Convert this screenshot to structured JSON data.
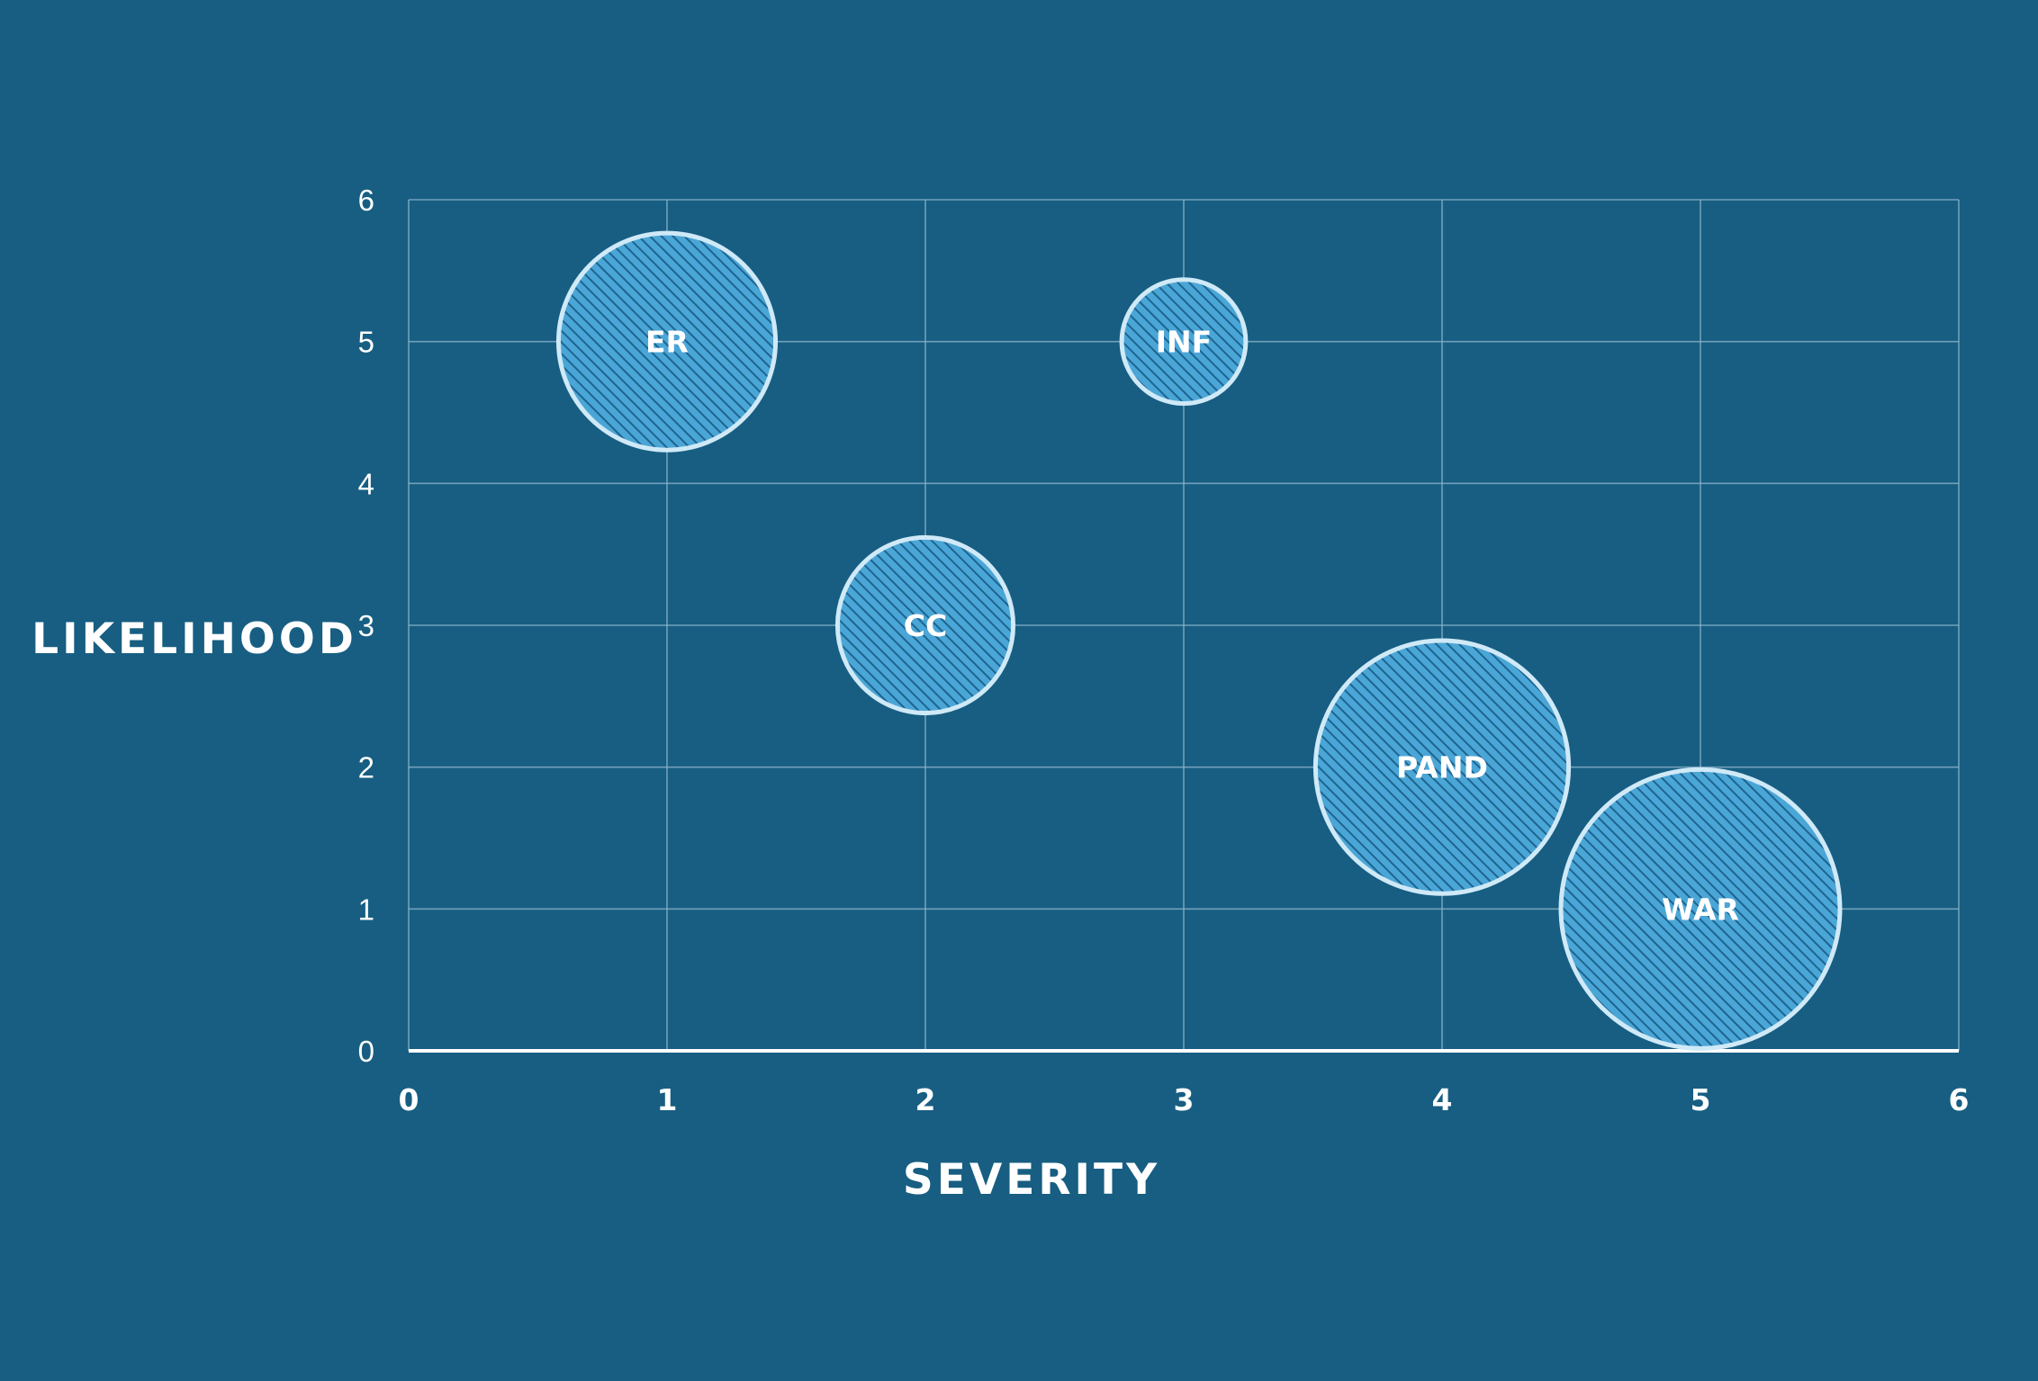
{
  "colors": {
    "background": "#175e82",
    "grid": "#8fb7cc",
    "axis_line": "#ffffff",
    "bubble_fill": "#4aa6d6",
    "bubble_hatch": "#1d6490",
    "bubble_stroke": "#cfe9f7",
    "text": "#ffffff"
  },
  "chart_data": {
    "type": "scatter",
    "variant": "bubble",
    "title": "",
    "xlabel": "SEVERITY",
    "ylabel": "LIKELIHOOD",
    "xlim": [
      0,
      6
    ],
    "ylim": [
      0,
      6
    ],
    "x_ticks": [
      "0",
      "1",
      "2",
      "3",
      "4",
      "5",
      "6"
    ],
    "y_ticks": [
      "0",
      "1",
      "2",
      "3",
      "4",
      "5",
      "6"
    ],
    "grid": true,
    "legend": "none",
    "points": [
      {
        "label": "ER",
        "x": 1,
        "y": 5,
        "size": 0.42
      },
      {
        "label": "INF",
        "x": 3,
        "y": 5,
        "size": 0.24
      },
      {
        "label": "CC",
        "x": 2,
        "y": 3,
        "size": 0.34
      },
      {
        "label": "PAND",
        "x": 4,
        "y": 2,
        "size": 0.49
      },
      {
        "label": "WAR",
        "x": 5,
        "y": 1,
        "size": 0.54
      }
    ]
  }
}
